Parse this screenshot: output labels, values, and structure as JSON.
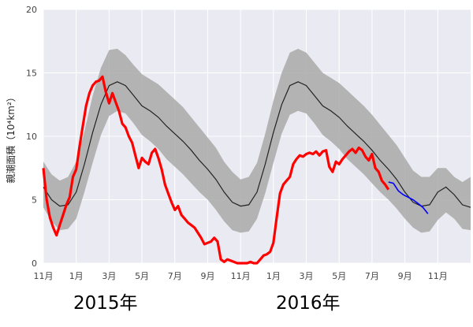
{
  "chart_data": {
    "type": "line",
    "ylabel": "親潮面積（10⁴km²）",
    "ylim": [
      0,
      20
    ],
    "yticks": [
      "0",
      "5",
      "10",
      "15",
      "20"
    ],
    "xlim": [
      0,
      26
    ],
    "xticks": [
      {
        "x": 0,
        "label": "11月"
      },
      {
        "x": 2,
        "label": "1月"
      },
      {
        "x": 4,
        "label": "3月"
      },
      {
        "x": 6,
        "label": "5月"
      },
      {
        "x": 8,
        "label": "7月"
      },
      {
        "x": 10,
        "label": "9月"
      },
      {
        "x": 12,
        "label": "11月"
      },
      {
        "x": 14,
        "label": "1月"
      },
      {
        "x": 16,
        "label": "3月"
      },
      {
        "x": 18,
        "label": "5月"
      },
      {
        "x": 20,
        "label": "7月"
      },
      {
        "x": 22,
        "label": "9月"
      },
      {
        "x": 24,
        "label": "11月"
      }
    ],
    "year_labels": [
      {
        "text": "2015年"
      },
      {
        "text": "2016年"
      }
    ],
    "grid": true,
    "background": "#eaeaf2",
    "colors": {
      "mean": "#222222",
      "band": "#a9a9a9",
      "obs": "#ff0000",
      "forecast": "#0000ff"
    },
    "series": [
      {
        "role": "mean",
        "x": [
          0,
          0.5,
          1,
          1.5,
          2,
          2.5,
          3,
          3.5,
          4,
          4.5,
          5,
          5.5,
          6,
          6.5,
          7,
          7.5,
          8,
          8.5,
          9,
          9.5,
          10,
          10.5,
          11,
          11.5,
          12,
          12.5,
          13,
          13.5,
          14,
          14.5,
          15,
          15.5,
          16,
          16.5,
          17,
          17.5,
          18,
          18.5,
          19,
          19.5,
          20,
          20.5,
          21,
          21.5,
          22,
          22.5,
          23,
          23.5,
          24,
          24.5,
          25,
          25.5,
          26
        ],
        "y": [
          6.0,
          5.0,
          4.5,
          4.6,
          5.6,
          7.8,
          10.3,
          12.5,
          14.0,
          14.3,
          14.0,
          13.2,
          12.4,
          12.0,
          11.5,
          10.8,
          10.2,
          9.6,
          8.9,
          8.1,
          7.4,
          6.6,
          5.6,
          4.8,
          4.5,
          4.6,
          5.6,
          7.8,
          10.3,
          12.5,
          14.0,
          14.3,
          14.0,
          13.2,
          12.4,
          12.0,
          11.5,
          10.8,
          10.2,
          9.6,
          8.9,
          8.1,
          7.4,
          6.6,
          5.6,
          4.8,
          4.5,
          4.6,
          5.6,
          6.0,
          5.4,
          4.6,
          4.4
        ]
      },
      {
        "role": "band",
        "x": [
          0,
          0.5,
          1,
          1.5,
          2,
          2.5,
          3,
          3.5,
          4,
          4.5,
          5,
          5.5,
          6,
          6.5,
          7,
          7.5,
          8,
          8.5,
          9,
          9.5,
          10,
          10.5,
          11,
          11.5,
          12,
          12.5,
          13,
          13.5,
          14,
          14.5,
          15,
          15.5,
          16,
          16.5,
          17,
          17.5,
          18,
          18.5,
          19,
          19.5,
          20,
          20.5,
          21,
          21.5,
          22,
          22.5,
          23,
          23.5,
          24,
          24.5,
          25,
          25.5,
          26
        ],
        "upper": [
          8.0,
          7.0,
          6.5,
          6.8,
          8.0,
          10.4,
          13.2,
          15.4,
          16.8,
          16.9,
          16.4,
          15.6,
          14.9,
          14.5,
          14.1,
          13.5,
          12.9,
          12.3,
          11.5,
          10.7,
          9.9,
          9.1,
          8.0,
          7.2,
          6.6,
          6.8,
          7.9,
          10.2,
          12.8,
          15.0,
          16.6,
          16.9,
          16.6,
          15.8,
          15.0,
          14.6,
          14.2,
          13.6,
          13.0,
          12.4,
          11.7,
          10.9,
          10.1,
          9.3,
          8.3,
          7.3,
          6.8,
          6.8,
          7.5,
          7.5,
          6.8,
          6.4,
          6.8
        ],
        "lower": [
          4.4,
          3.3,
          2.6,
          2.7,
          3.5,
          5.6,
          7.9,
          10.1,
          11.6,
          12.0,
          11.8,
          11.0,
          10.1,
          9.6,
          9.0,
          8.2,
          7.6,
          7.0,
          6.3,
          5.6,
          5.0,
          4.2,
          3.3,
          2.6,
          2.4,
          2.5,
          3.5,
          5.5,
          7.9,
          10.2,
          11.7,
          12.0,
          11.8,
          11.0,
          10.1,
          9.6,
          9.0,
          8.2,
          7.6,
          7.0,
          6.3,
          5.6,
          5.0,
          4.3,
          3.5,
          2.8,
          2.4,
          2.5,
          3.4,
          4.0,
          3.5,
          2.7,
          2.6
        ]
      },
      {
        "role": "observed",
        "x": [
          0,
          0.2,
          0.4,
          0.6,
          0.8,
          1.0,
          1.2,
          1.4,
          1.6,
          1.8,
          2.0,
          2.2,
          2.4,
          2.6,
          2.8,
          3.0,
          3.2,
          3.4,
          3.6,
          3.8,
          4.0,
          4.2,
          4.4,
          4.6,
          4.8,
          5.0,
          5.2,
          5.4,
          5.6,
          5.8,
          6.0,
          6.2,
          6.4,
          6.6,
          6.8,
          7.0,
          7.2,
          7.4,
          7.6,
          7.8,
          8.0,
          8.2,
          8.4,
          8.6,
          8.8,
          9.0,
          9.2,
          9.4,
          9.6,
          9.8,
          10.0,
          10.2,
          10.4,
          10.6,
          10.8,
          11.0,
          11.2,
          11.4,
          11.6,
          11.8,
          12.0,
          12.2,
          12.4,
          12.6,
          12.8,
          13.0,
          13.2,
          13.4,
          13.6,
          13.8,
          14.0,
          14.2,
          14.4,
          14.6,
          14.8,
          15.0,
          15.2,
          15.4,
          15.6,
          15.8,
          16.0,
          16.2,
          16.4,
          16.6,
          16.8,
          17.0,
          17.2,
          17.4,
          17.6,
          17.8,
          18.0,
          18.2,
          18.4,
          18.6,
          18.8,
          19.0,
          19.2,
          19.4,
          19.6,
          19.8,
          20.0,
          20.2,
          20.4,
          20.6,
          20.8,
          21.0
        ],
        "y": [
          7.5,
          5.0,
          3.6,
          2.8,
          2.2,
          3.0,
          3.8,
          4.6,
          5.2,
          6.8,
          7.4,
          9.2,
          10.8,
          12.4,
          13.4,
          14.0,
          14.3,
          14.4,
          14.7,
          13.5,
          12.6,
          13.4,
          12.7,
          12.0,
          11.0,
          10.7,
          10.0,
          9.5,
          8.5,
          7.5,
          8.3,
          8.0,
          7.8,
          8.7,
          9.0,
          8.3,
          7.4,
          6.2,
          5.5,
          4.8,
          4.2,
          4.5,
          3.8,
          3.5,
          3.2,
          3.0,
          2.8,
          2.4,
          2.0,
          1.5,
          1.6,
          1.7,
          2.0,
          1.7,
          0.3,
          0.1,
          0.3,
          0.2,
          0.1,
          0.0,
          0.0,
          0.0,
          0.0,
          0.1,
          0.0,
          0.0,
          0.3,
          0.6,
          0.7,
          0.9,
          1.6,
          3.6,
          5.5,
          6.2,
          6.5,
          6.8,
          7.8,
          8.2,
          8.5,
          8.4,
          8.6,
          8.7,
          8.6,
          8.8,
          8.5,
          8.8,
          8.9,
          7.6,
          7.2,
          8.0,
          7.8,
          8.2,
          8.5,
          8.8,
          9.0,
          8.7,
          9.1,
          8.9,
          8.4,
          8.1,
          8.6,
          7.5,
          7.2,
          6.5,
          6.2,
          5.8
        ]
      },
      {
        "role": "forecast",
        "x": [
          21.0,
          21.3,
          21.6,
          21.9,
          22.2,
          22.5,
          22.8,
          23.1,
          23.4
        ],
        "y": [
          6.4,
          6.3,
          5.7,
          5.4,
          5.2,
          5.0,
          4.7,
          4.4,
          3.9
        ]
      }
    ]
  }
}
